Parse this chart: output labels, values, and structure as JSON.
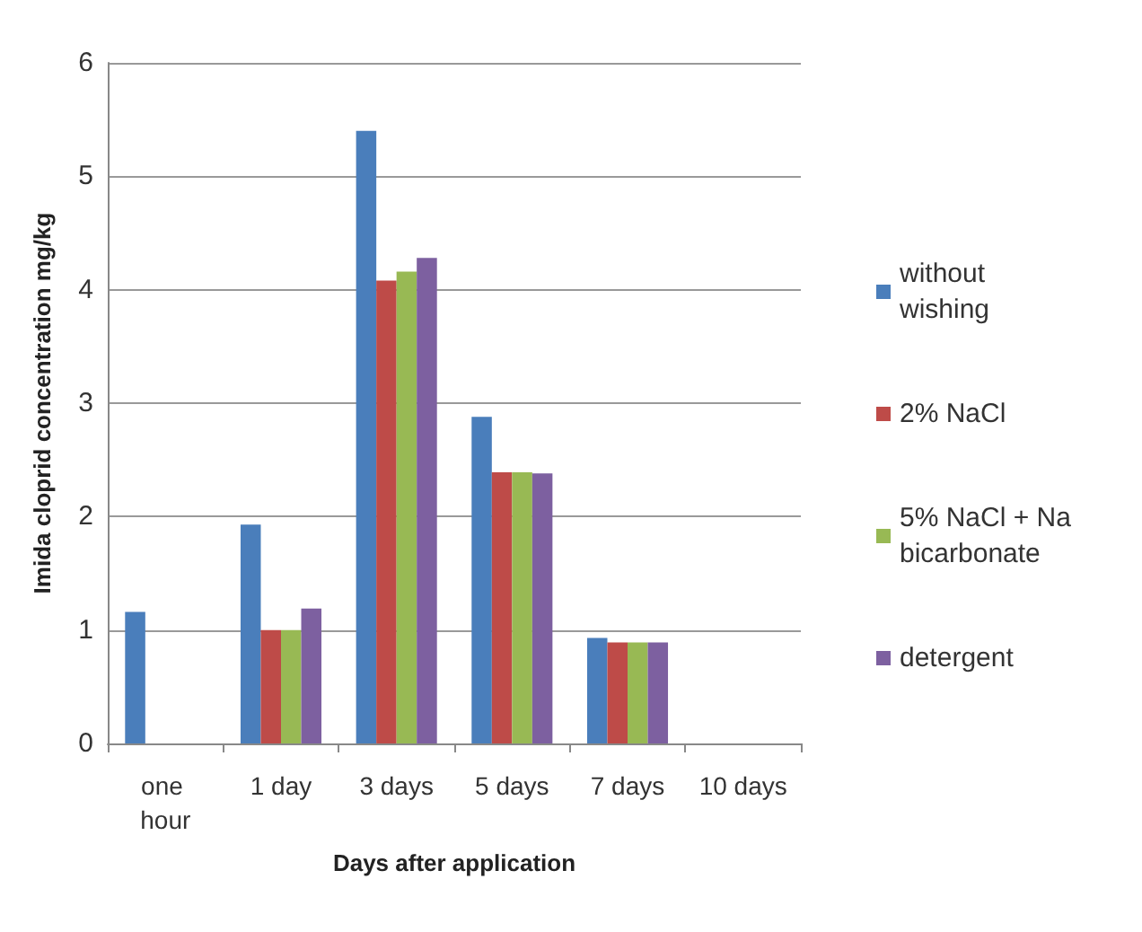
{
  "chart_data": {
    "type": "bar",
    "xlabel": "Days after application",
    "ylabel": "Imida cloprid concentration mg/kg",
    "categories": [
      "one hour",
      "1 day",
      "3 days",
      "5 days",
      "7 days",
      "10 days"
    ],
    "series": [
      {
        "name": "without wishing",
        "color": "#4a7ebb",
        "values": [
          1.16,
          1.93,
          5.4,
          2.88,
          0.93,
          0
        ]
      },
      {
        "name": "2% NaCl",
        "color": "#be4b48",
        "values": [
          0,
          1.0,
          4.08,
          2.39,
          0.89,
          0
        ]
      },
      {
        "name": "5% NaCl + Na bicarbonate",
        "color": "#98b954",
        "values": [
          0,
          1.0,
          4.16,
          2.39,
          0.89,
          0
        ]
      },
      {
        "name": "detergent",
        "color": "#7d60a0",
        "values": [
          0,
          1.19,
          4.28,
          2.38,
          0.89,
          0
        ]
      }
    ],
    "ylim": [
      0,
      6
    ],
    "yticks": [
      0,
      1,
      2,
      3,
      4,
      5,
      6
    ],
    "grid": "y",
    "legend": "right"
  }
}
